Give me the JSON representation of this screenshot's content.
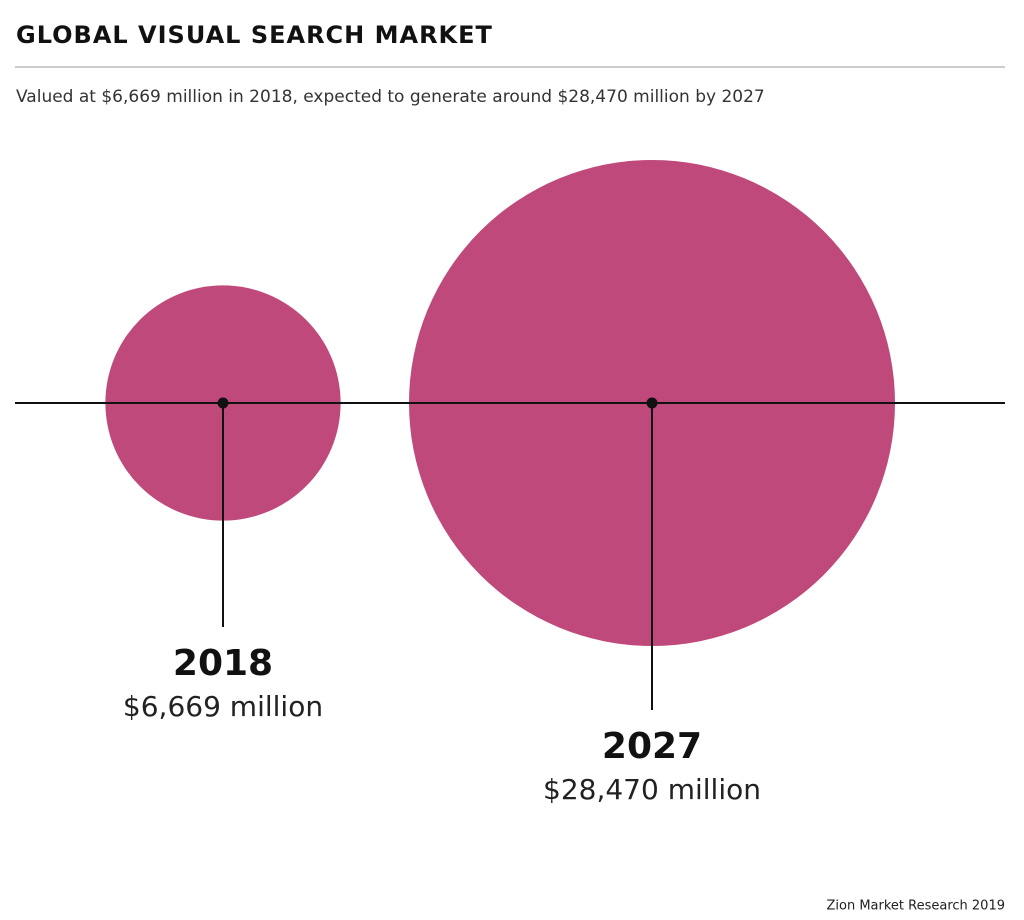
{
  "chart_data": {
    "type": "bubble",
    "title": "GLOBAL VISUAL SEARCH MARKET",
    "subtitle": "Valued at $6,669 million in 2018, expected to generate around $28,470 million by 2027",
    "source": "Zion Market Research 2019",
    "categories": [
      "2018",
      "2027"
    ],
    "values": [
      6669,
      28470
    ],
    "value_labels": [
      "$6,669 million",
      "$28,470 million"
    ],
    "color": "#c0497c"
  }
}
